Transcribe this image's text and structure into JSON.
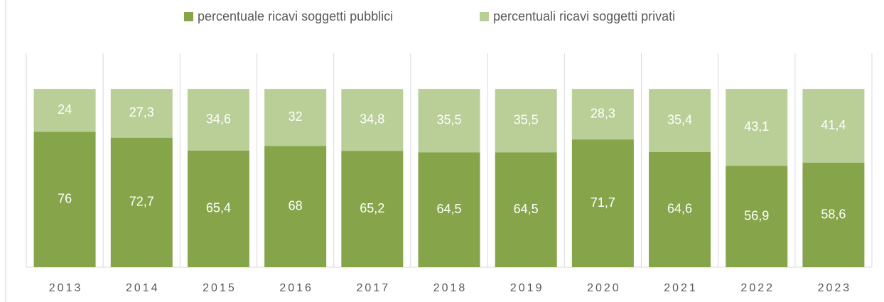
{
  "chart_data": {
    "type": "stacked_bar",
    "categories": [
      "2013",
      "2014",
      "2015",
      "2016",
      "2017",
      "2018",
      "2019",
      "2020",
      "2021",
      "2022",
      "2023"
    ],
    "series": [
      {
        "name": "percentuale ricavi soggetti pubblici",
        "color": "#86a54b",
        "values": [
          76,
          72.7,
          65.4,
          68,
          65.2,
          64.5,
          64.5,
          71.7,
          64.6,
          56.9,
          58.6
        ],
        "value_labels": [
          "76",
          "72,7",
          "65,4",
          "68",
          "65,2",
          "64,5",
          "64,5",
          "71,7",
          "64,6",
          "56,9",
          "58,6"
        ]
      },
      {
        "name": "percentuali ricavi soggetti privati",
        "color": "#b9cf97",
        "values": [
          24,
          27.3,
          34.6,
          32,
          34.8,
          35.5,
          35.5,
          28.3,
          35.4,
          43.1,
          41.4
        ],
        "value_labels": [
          "24",
          "27,3",
          "34,6",
          "32",
          "34,8",
          "35,5",
          "35,5",
          "28,3",
          "35,4",
          "43,1",
          "41,4"
        ]
      }
    ],
    "ylim": [
      0,
      120
    ],
    "legend": "top"
  }
}
